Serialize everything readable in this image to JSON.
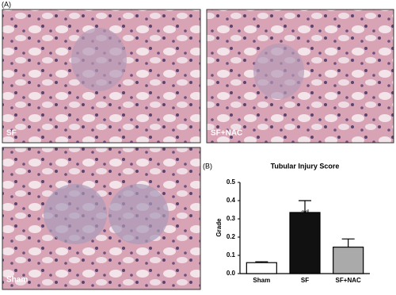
{
  "panel_a": {
    "label": "(A)",
    "images": [
      "SF",
      "SF+NAC",
      "Sham"
    ]
  },
  "chart_data": {
    "type": "bar",
    "panel_label": "(B)",
    "title": "Tubular Injury Score",
    "y_label": "Grade",
    "categories": [
      "Sham",
      "SF",
      "SF+NAC"
    ],
    "values": [
      0.06,
      0.335,
      0.145
    ],
    "errors": [
      0.005,
      0.065,
      0.045
    ],
    "colors": [
      "#ffffff",
      "#111111",
      "#aaaaaa"
    ],
    "annotation": "ad",
    "ylim": [
      0,
      0.5
    ],
    "yticks": [
      {
        "value": 0,
        "label": "0.0"
      },
      0.1,
      0.2,
      0.3,
      0.4,
      0.5
    ]
  }
}
